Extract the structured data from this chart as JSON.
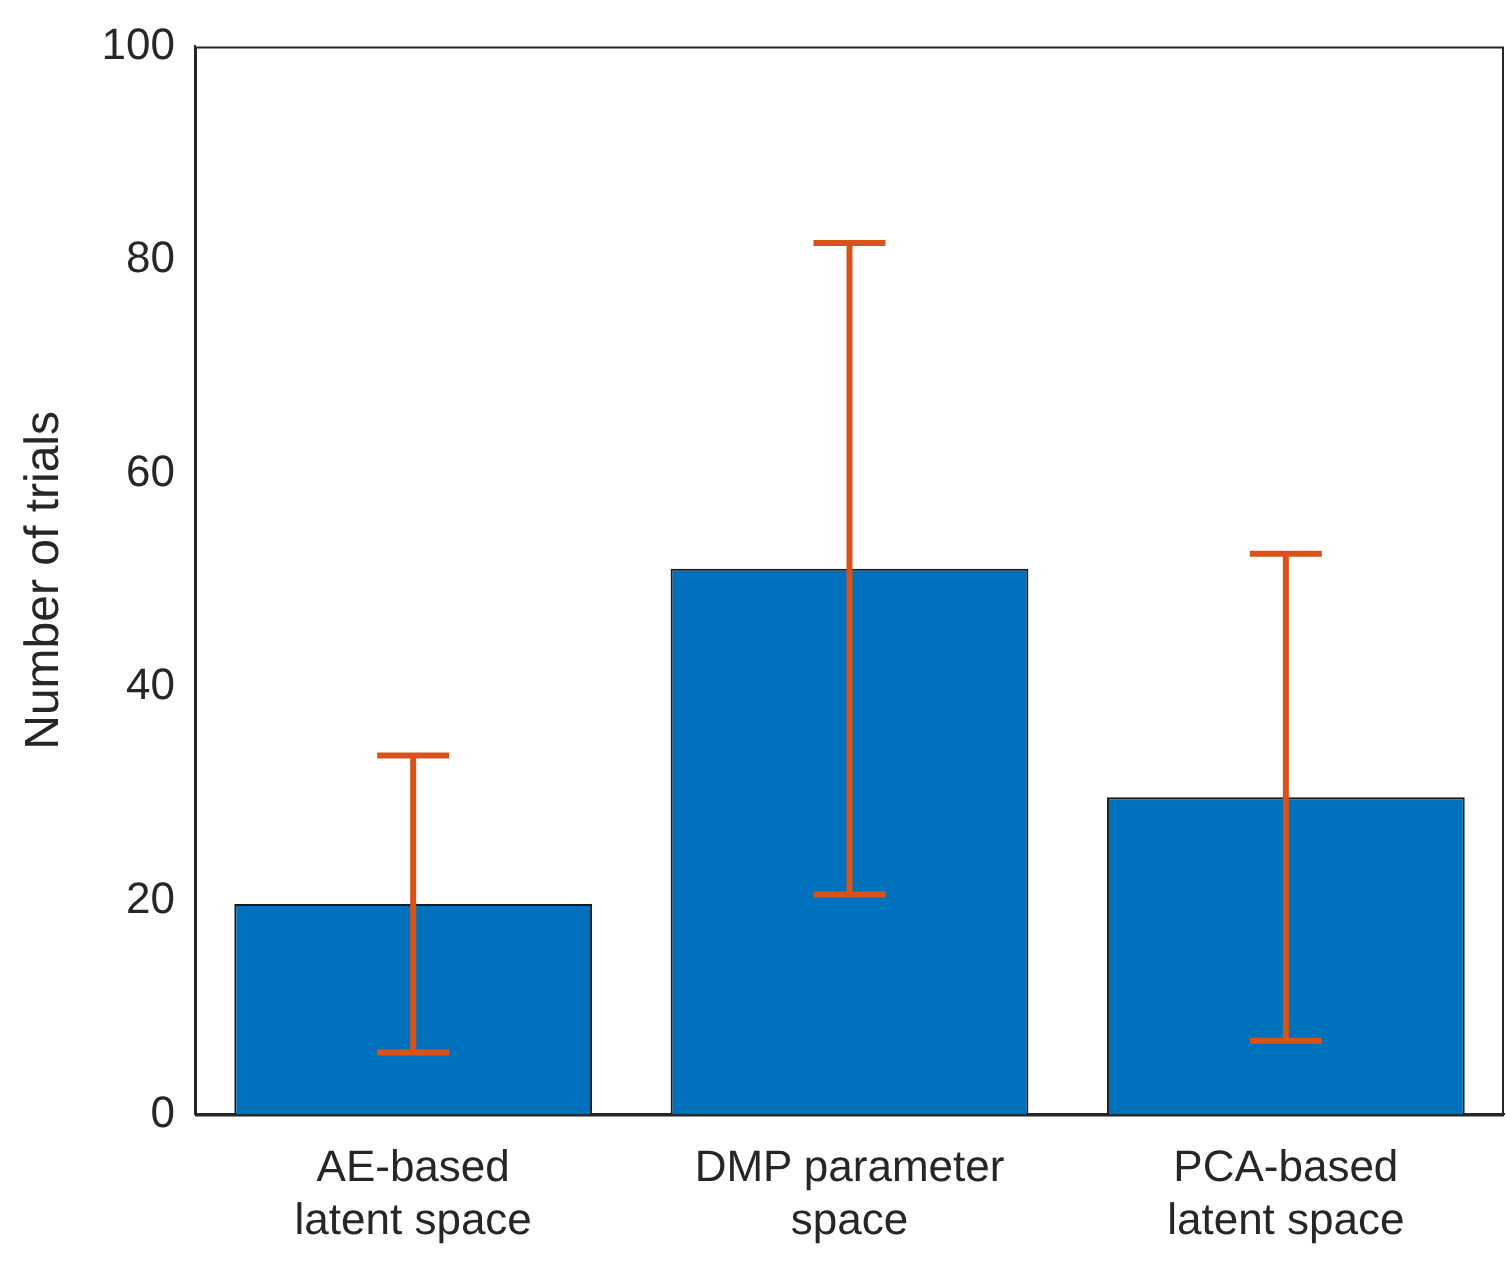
{
  "chart_data": {
    "type": "bar",
    "ylabel": "Number of trials",
    "categories": [
      "AE-based\nlatent space",
      "DMP parameter\nspace",
      "PCA-based\nlatent space"
    ],
    "values": [
      19.7,
      51.1,
      29.7
    ],
    "errors": [
      13.9,
      30.5,
      22.8
    ],
    "color": "#0072bd",
    "ylim": [
      0,
      100
    ],
    "yticks": [
      0,
      20,
      40,
      60,
      80,
      100
    ],
    "grid": false,
    "legend": false
  }
}
